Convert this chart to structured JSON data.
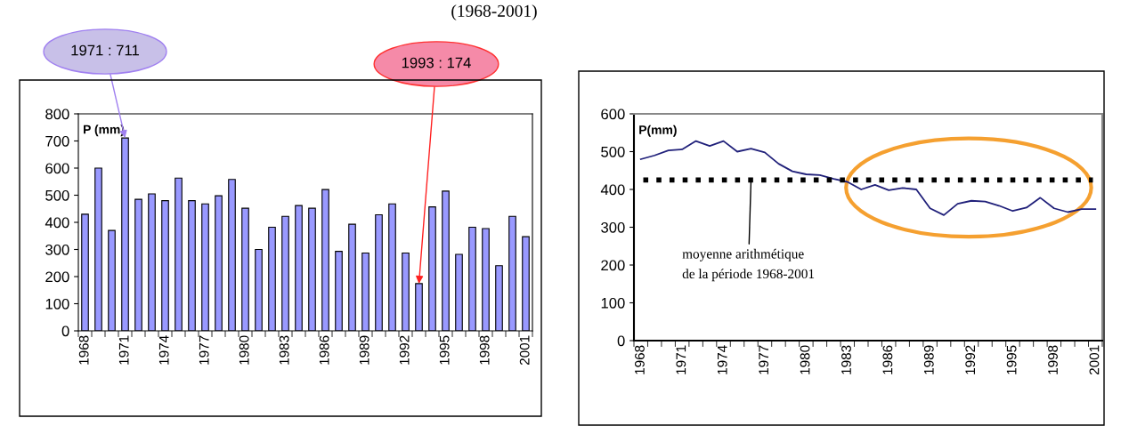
{
  "chart_data": [
    {
      "type": "bar",
      "title": "(1968-2001)",
      "ylabel": "P (mm)",
      "categories": [
        "1968",
        null,
        null,
        "1971",
        null,
        null,
        "1974",
        null,
        null,
        "1977",
        null,
        null,
        "1980",
        null,
        null,
        "1983",
        null,
        null,
        "1986",
        null,
        null,
        "1989",
        null,
        null,
        "1992",
        null,
        null,
        "1995",
        null,
        null,
        "1998",
        null,
        null,
        "2001"
      ],
      "values": [
        430,
        600,
        370,
        711,
        485,
        505,
        480,
        563,
        480,
        468,
        498,
        558,
        452,
        300,
        382,
        422,
        462,
        452,
        521,
        293,
        393,
        287,
        428,
        468,
        287,
        174,
        457,
        515,
        282,
        382,
        377,
        240,
        422,
        347
      ],
      "color": "#9999ff",
      "ylim": [
        0,
        800
      ],
      "yticks": [
        0,
        100,
        200,
        300,
        400,
        500,
        600,
        700,
        800
      ],
      "grid": false,
      "legend": false,
      "annotations": [
        {
          "text": "1971 : 711",
          "x": "1971",
          "y": 711
        },
        "1993 : 174"
      ]
    },
    {
      "type": "line",
      "ylabel": "P(mm)",
      "categories": [
        "1968",
        null,
        null,
        "1971",
        null,
        null,
        "1974",
        null,
        null,
        "1977",
        null,
        null,
        "1980",
        null,
        null,
        "1983",
        null,
        null,
        "1986",
        null,
        null,
        "1989",
        null,
        null,
        "1992",
        null,
        null,
        "1995",
        null,
        null,
        "1998",
        null,
        null,
        "2001"
      ],
      "series": [
        {
          "color": "#20207a",
          "values": [
            480,
            490,
            503,
            506,
            528,
            515,
            528,
            500,
            508,
            498,
            468,
            448,
            440,
            438,
            428,
            420,
            400,
            412,
            398,
            404,
            400,
            350,
            332,
            362,
            370,
            368,
            357,
            343,
            352,
            378,
            350,
            340,
            348,
            348
          ]
        }
      ],
      "ylim": [
        0,
        600
      ],
      "yticks": [
        0,
        100,
        200,
        300,
        400,
        500,
        600
      ],
      "grid": false,
      "legend": false,
      "marker": "none",
      "line_style": "solid",
      "ref_lines": [
        {
          "axis": "y",
          "value": 425,
          "label": "moyenne arithmétique\nde la période 1968-2001",
          "color": "#000000",
          "line_style": "dotted"
        }
      ]
    }
  ]
}
